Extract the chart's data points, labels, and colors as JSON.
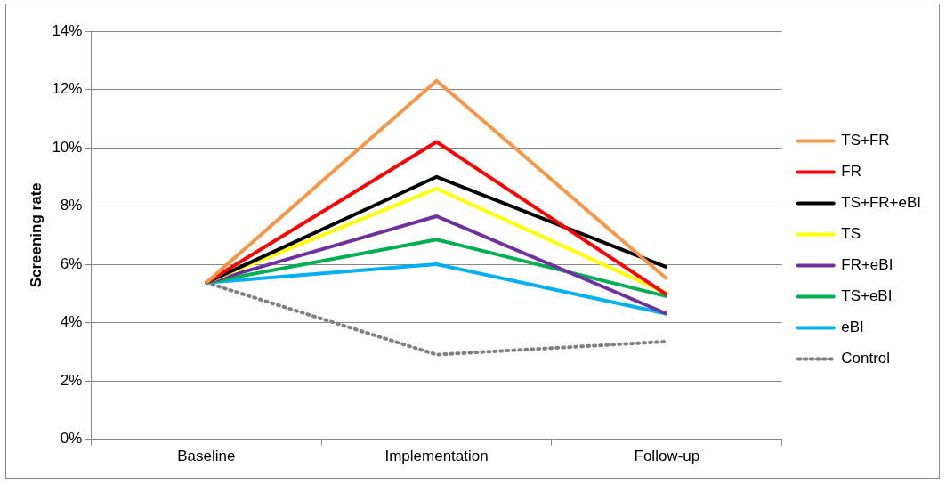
{
  "chart_data": {
    "type": "line",
    "ylabel": "Screening rate",
    "categories": [
      "Baseline",
      "Implementation",
      "Follow-up"
    ],
    "series": [
      {
        "name": "TS+FR",
        "color": "#f79646",
        "values": [
          5.37,
          12.3,
          5.5
        ]
      },
      {
        "name": "FR",
        "color": "#ff0000",
        "values": [
          5.37,
          10.2,
          4.95
        ]
      },
      {
        "name": "TS+FR+eBI",
        "color": "#000000",
        "values": [
          5.37,
          9.0,
          5.9
        ]
      },
      {
        "name": "TS",
        "color": "#ffff00",
        "values": [
          5.37,
          8.6,
          5.0
        ]
      },
      {
        "name": "FR+eBI",
        "color": "#7030a0",
        "values": [
          5.37,
          7.65,
          4.3
        ]
      },
      {
        "name": "TS+eBI",
        "color": "#00b050",
        "values": [
          5.37,
          6.85,
          4.9
        ]
      },
      {
        "name": "eBI",
        "color": "#00b0f0",
        "values": [
          5.37,
          6.0,
          4.3
        ]
      },
      {
        "name": "Control",
        "color": "#808080",
        "values": [
          5.37,
          2.9,
          3.35
        ],
        "line_style": "dotted"
      }
    ],
    "ylim": [
      0,
      14
    ],
    "yticks": [
      {
        "value": 0,
        "label": "0%"
      },
      {
        "value": 2,
        "label": "2%"
      },
      {
        "value": 4,
        "label": "4%"
      },
      {
        "value": 6,
        "label": "6%"
      },
      {
        "value": 8,
        "label": "8%"
      },
      {
        "value": 10,
        "label": "10%"
      },
      {
        "value": 12,
        "label": "12%"
      },
      {
        "value": 14,
        "label": "14%"
      }
    ],
    "grid": "y",
    "legend": "right",
    "marker": "none",
    "line_style": "solid"
  }
}
